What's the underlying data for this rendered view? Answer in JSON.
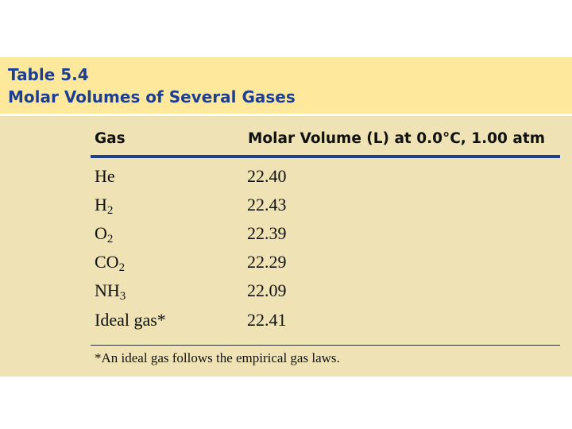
{
  "table": {
    "number": "Table 5.4",
    "title": "Molar Volumes of Several Gases",
    "columns": [
      "Gas",
      "Molar Volume (L) at 0.0°C, 1.00 atm"
    ],
    "rows": [
      {
        "gas": "He",
        "gas_sub": "",
        "volume": "22.40"
      },
      {
        "gas": "H",
        "gas_sub": "2",
        "volume": "22.43"
      },
      {
        "gas": "O",
        "gas_sub": "2",
        "volume": "22.39"
      },
      {
        "gas": "CO",
        "gas_sub": "2",
        "volume": "22.29"
      },
      {
        "gas": "NH",
        "gas_sub": "3",
        "volume": "22.09"
      },
      {
        "gas": "Ideal gas*",
        "gas_sub": "",
        "volume": "22.41"
      }
    ],
    "footnote": "*An ideal gas follows the empirical gas laws."
  },
  "colors": {
    "title_band": "#fde89c",
    "body_panel": "#efe3b5",
    "title_text": "#1e3f8f",
    "header_rule": "#1e3f8f"
  }
}
